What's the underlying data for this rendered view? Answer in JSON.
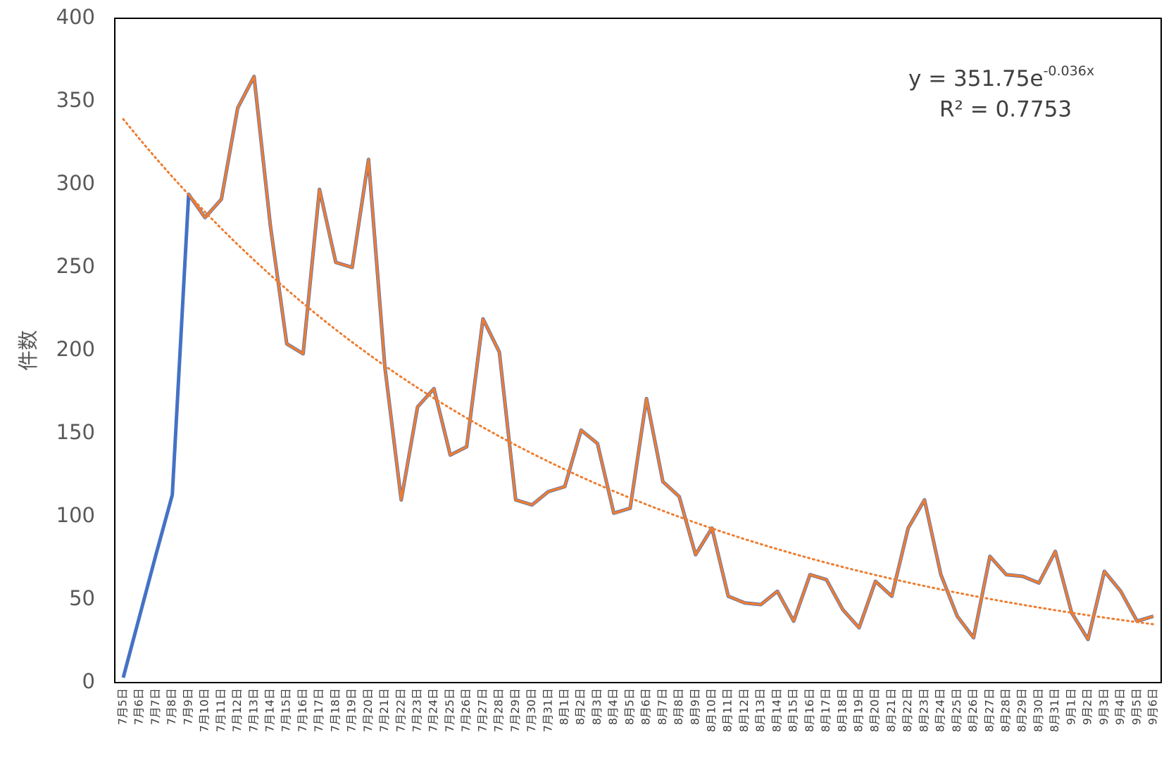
{
  "chart_data": {
    "type": "line",
    "y_label": "件数",
    "categories": [
      "7月5日",
      "7月6日",
      "7月7日",
      "7月8日",
      "7月9日",
      "7月10日",
      "7月11日",
      "7月12日",
      "7月13日",
      "7月14日",
      "7月15日",
      "7月16日",
      "7月17日",
      "7月18日",
      "7月19日",
      "7月20日",
      "7月21日",
      "7月22日",
      "7月23日",
      "7月24日",
      "7月25日",
      "7月26日",
      "7月27日",
      "7月28日",
      "7月29日",
      "7月30日",
      "7月31日",
      "8月1日",
      "8月2日",
      "8月3日",
      "8月4日",
      "8月5日",
      "8月6日",
      "8月7日",
      "8月8日",
      "8月9日",
      "8月10日",
      "8月11日",
      "8月12日",
      "8月13日",
      "8月14日",
      "8月15日",
      "8月16日",
      "8月17日",
      "8月18日",
      "8月19日",
      "8月20日",
      "8月21日",
      "8月22日",
      "8月23日",
      "8月24日",
      "8月25日",
      "8月26日",
      "8月27日",
      "8月28日",
      "8月29日",
      "8月30日",
      "8月31日",
      "9月1日",
      "9月2日",
      "9月3日",
      "9月4日",
      "9月5日",
      "9月6日"
    ],
    "series": [
      {
        "color": "#4472c4",
        "values": [
          3,
          40,
          77,
          113,
          294,
          280,
          291,
          346,
          365,
          275,
          204,
          198,
          297,
          253,
          250,
          315,
          190,
          110,
          166,
          177,
          137,
          142,
          219,
          199,
          110,
          107,
          115,
          118,
          152,
          144,
          102,
          105,
          171,
          121,
          112,
          77,
          93,
          52,
          48,
          47,
          55,
          37,
          65,
          62,
          44,
          33,
          61,
          52,
          93,
          110,
          65,
          40,
          27,
          76,
          65,
          64,
          60,
          79,
          42,
          26,
          67,
          55,
          37,
          40
        ]
      },
      {
        "color": "#ed7d31",
        "values": [
          null,
          null,
          null,
          null,
          294,
          280,
          291,
          346,
          365,
          275,
          204,
          198,
          297,
          253,
          250,
          315,
          190,
          110,
          166,
          177,
          137,
          142,
          219,
          199,
          110,
          107,
          115,
          118,
          152,
          144,
          102,
          105,
          171,
          121,
          112,
          77,
          93,
          52,
          48,
          47,
          55,
          37,
          65,
          62,
          44,
          33,
          61,
          52,
          93,
          110,
          65,
          40,
          27,
          76,
          65,
          64,
          60,
          79,
          42,
          26,
          67,
          55,
          37,
          40
        ]
      }
    ],
    "trendline": {
      "kind": "exponential",
      "coefficient": 351.75,
      "rate": -0.036,
      "color": "#ed7d31",
      "equation": "y = 351.75e",
      "exponent": "-0.036x",
      "r_squared": "R² = 0.7753"
    },
    "ylim": [
      0,
      400
    ],
    "yticks": [
      0,
      50,
      100,
      150,
      200,
      250,
      300,
      350,
      400
    ],
    "grid": false
  }
}
